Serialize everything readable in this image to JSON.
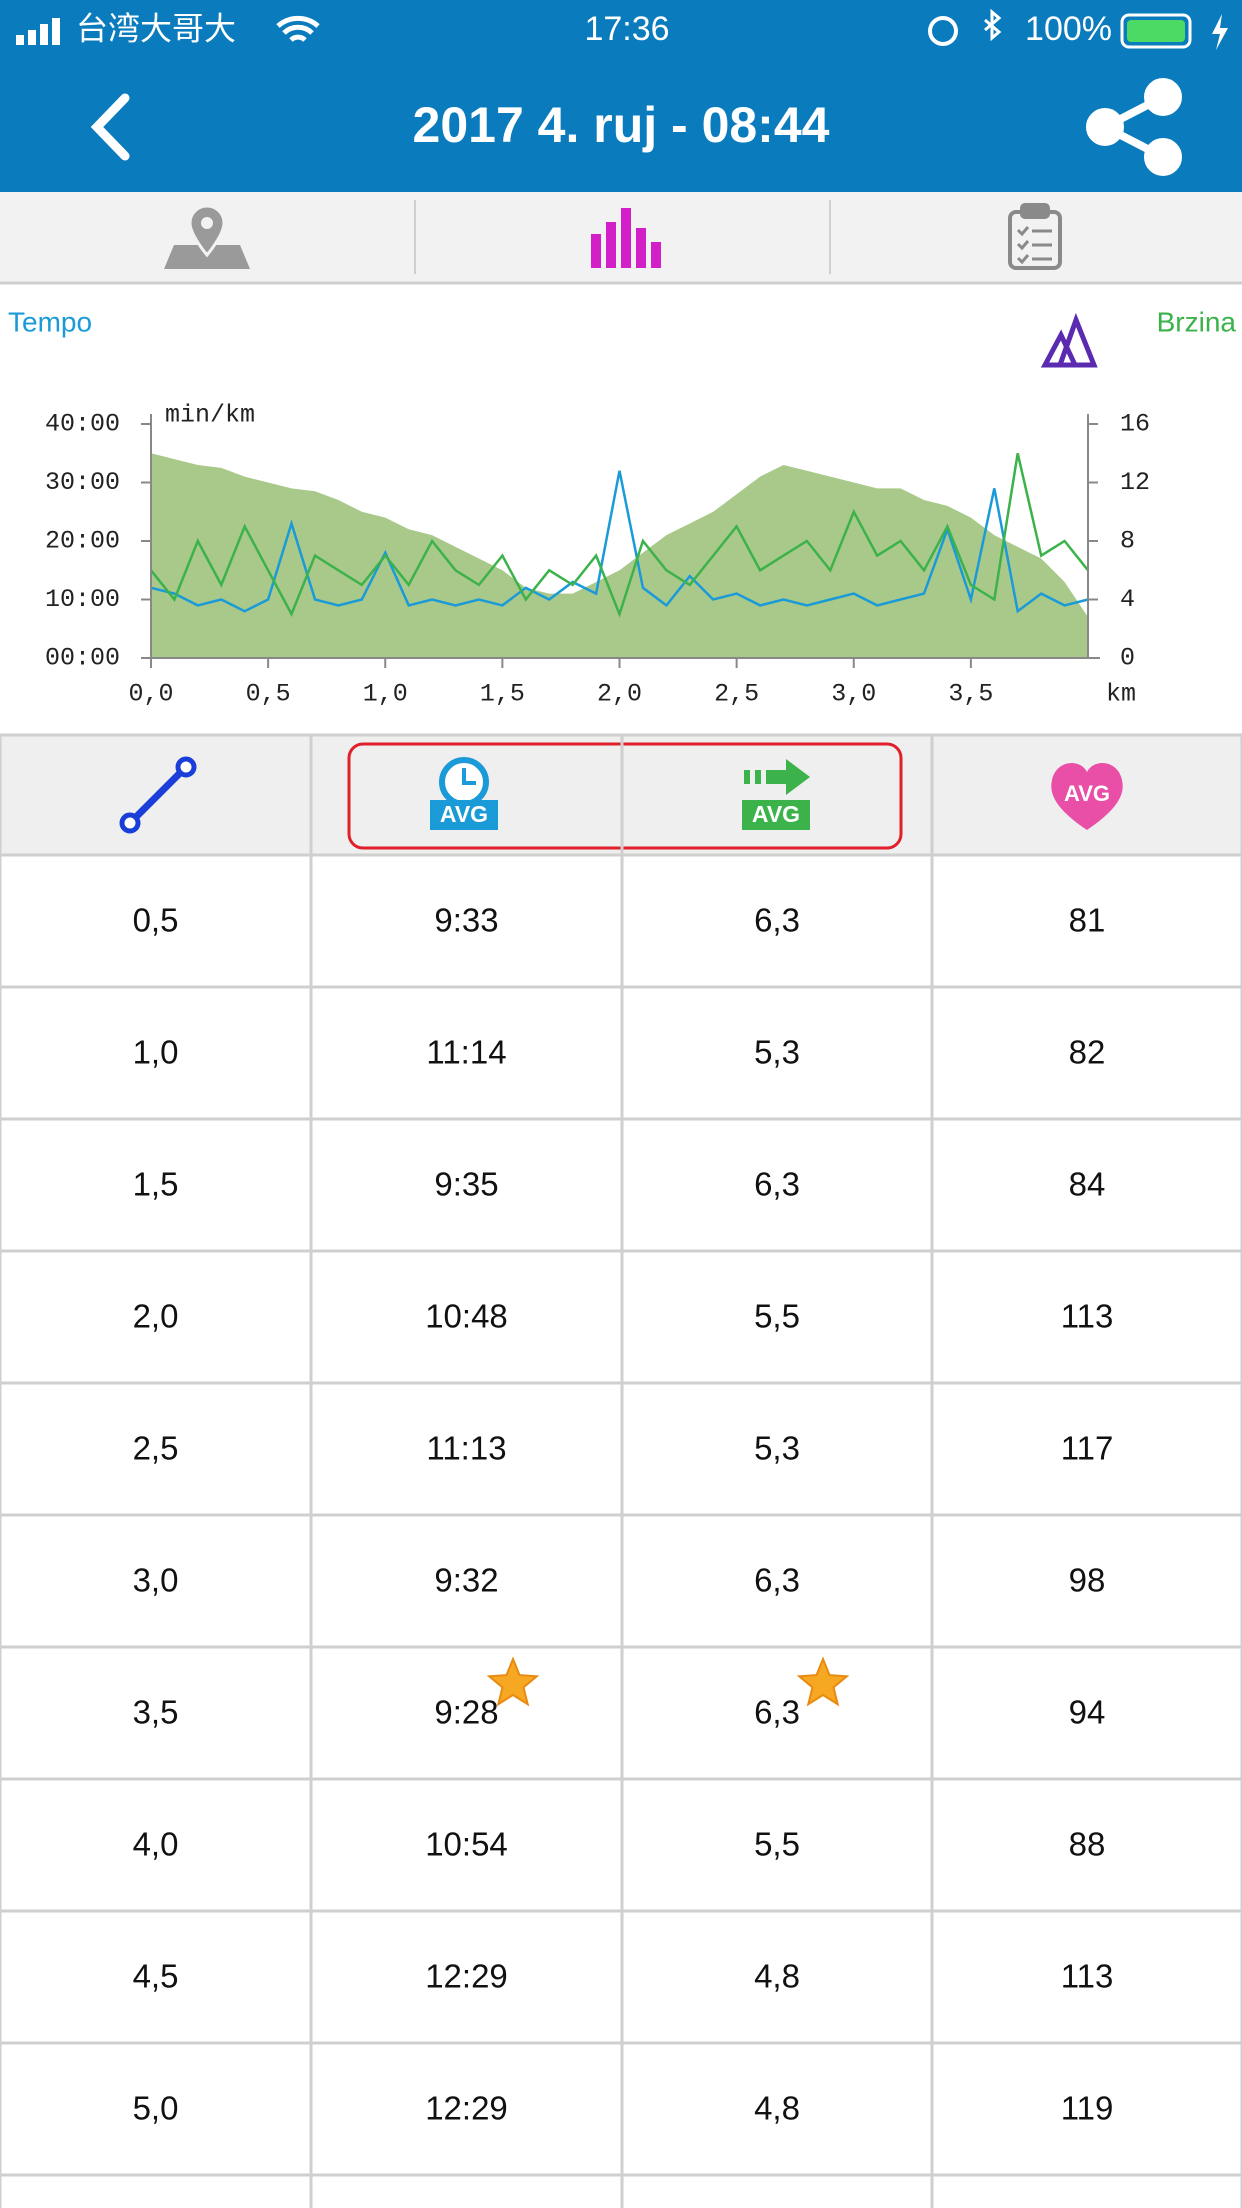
{
  "status_bar": {
    "carrier": "台湾大哥大",
    "time": "17:36",
    "battery": "100%"
  },
  "header": {
    "title": "2017 4. ruj - 08:44"
  },
  "chart_data": {
    "type": "line",
    "x_label": "km",
    "y_label": "min/km",
    "x": [
      0,
      0.1,
      0.2,
      0.3,
      0.4,
      0.5,
      0.6,
      0.7,
      0.8,
      0.9,
      1.0,
      1.1,
      1.2,
      1.3,
      1.4,
      1.5,
      1.6,
      1.7,
      1.8,
      1.9,
      2.0,
      2.1,
      2.2,
      2.3,
      2.4,
      2.5,
      2.6,
      2.7,
      2.8,
      2.9,
      3.0,
      3.1,
      3.2,
      3.3,
      3.4,
      3.5,
      3.6,
      3.7,
      3.8,
      3.9,
      4.0
    ],
    "series": [
      {
        "color": "#a9c98b",
        "fill": true,
        "axis": "y",
        "values": [
          35,
          34,
          33,
          32.5,
          31,
          30,
          29,
          28.5,
          27,
          25,
          24,
          22,
          21,
          19,
          17,
          15,
          12,
          11,
          11,
          13,
          15,
          18,
          21,
          23,
          25,
          28,
          31,
          33,
          32,
          31,
          30,
          29,
          29,
          27,
          26,
          24,
          21,
          19,
          17,
          13,
          7
        ]
      },
      {
        "name": "Tempo",
        "color": "#1a9bd7",
        "axis": "y",
        "values": [
          12,
          11,
          9,
          10,
          8,
          10,
          23,
          10,
          9,
          10,
          18,
          9,
          10,
          9,
          10,
          9,
          12,
          10,
          13,
          11,
          32,
          12,
          9,
          14,
          10,
          11,
          9,
          10,
          9,
          10,
          11,
          9,
          10,
          11,
          22,
          10,
          29,
          8,
          11,
          9,
          10
        ]
      },
      {
        "name": "Brzina",
        "color": "#3bb24a",
        "axis": "y2",
        "values": [
          6,
          4,
          8,
          5,
          9,
          6,
          3,
          7,
          6,
          5,
          7,
          5,
          8,
          6,
          5,
          7,
          4,
          6,
          5,
          7,
          3,
          8,
          6,
          5,
          7,
          9,
          6,
          7,
          8,
          6,
          10,
          7,
          8,
          6,
          9,
          5,
          4,
          14,
          7,
          8,
          6
        ]
      }
    ],
    "xlim": [
      0,
      4.0
    ],
    "xticks": [
      {
        "value": 0,
        "label": "0,0"
      },
      {
        "value": 0.5,
        "label": "0,5"
      },
      {
        "value": 1.0,
        "label": "1,0"
      },
      {
        "value": 1.5,
        "label": "1,5"
      },
      {
        "value": 2.0,
        "label": "2,0"
      },
      {
        "value": 2.5,
        "label": "2,5"
      },
      {
        "value": 3.0,
        "label": "3,0"
      },
      {
        "value": 3.5,
        "label": "3,5"
      }
    ],
    "ylim": [
      0,
      40
    ],
    "yticks": [
      {
        "value": 0,
        "label": "00:00"
      },
      {
        "value": 10,
        "label": "10:00"
      },
      {
        "value": 20,
        "label": "20:00"
      },
      {
        "value": 30,
        "label": "30:00"
      },
      {
        "value": 40,
        "label": "40:00"
      }
    ],
    "y2lim": [
      0,
      16
    ],
    "y2ticks": [
      0,
      4,
      8,
      12,
      16
    ]
  },
  "table": {
    "header_labels": [
      "AVG",
      "AVG",
      "AVG"
    ],
    "rows": [
      [
        "0,5",
        "9:33",
        "6,3",
        "81"
      ],
      [
        "1,0",
        "11:14",
        "5,3",
        "82"
      ],
      [
        "1,5",
        "9:35",
        "6,3",
        "84"
      ],
      [
        "2,0",
        "10:48",
        "5,5",
        "113"
      ],
      [
        "2,5",
        "11:13",
        "5,3",
        "117"
      ],
      [
        "3,0",
        "9:32",
        "6,3",
        "98"
      ],
      [
        "3,5",
        "9:28",
        "6,3",
        "94"
      ],
      [
        "4,0",
        "10:54",
        "5,5",
        "88"
      ],
      [
        "4,5",
        "12:29",
        "4,8",
        "113"
      ],
      [
        "5,0",
        "12:29",
        "4,8",
        "119"
      ]
    ]
  }
}
